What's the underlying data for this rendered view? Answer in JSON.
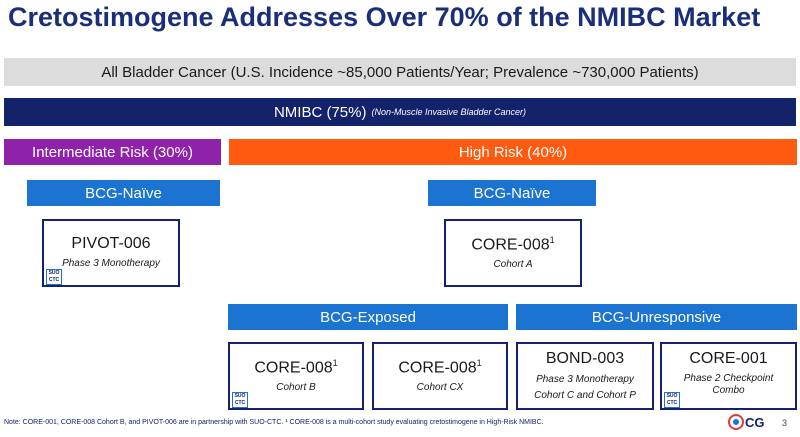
{
  "title": "Cretostimogene Addresses Over 70% of the NMIBC Market",
  "all_bladder": "All Bladder Cancer (U.S. Incidence ~85,000 Patients/Year; Prevalence ~730,000 Patients)",
  "nmibc": {
    "label": "NMIBC (75%)",
    "sub": "(Non-Muscle Invasive Bladder Cancer)"
  },
  "risk": {
    "intermediate": "Intermediate Risk (30%)",
    "high": "High Risk (40%)"
  },
  "categories": {
    "naive_left": "BCG-Naïve",
    "naive_right": "BCG-Naïve",
    "exposed": "BCG-Exposed",
    "unresponsive": "BCG-Unresponsive"
  },
  "studies": {
    "pivot006": {
      "name": "PIVOT-006",
      "detail": "Phase 3 Monotherapy"
    },
    "core008a": {
      "name": "CORE-008",
      "sup": "1",
      "detail": "Cohort A"
    },
    "core008b": {
      "name": "CORE-008",
      "sup": "1",
      "detail": "Cohort B"
    },
    "core008cx": {
      "name": "CORE-008",
      "sup": "1",
      "detail": "Cohort CX"
    },
    "bond003": {
      "name": "BOND-003",
      "detail1": "Phase 3 Monotherapy",
      "detail2": "Cohort C and Cohort P"
    },
    "core001": {
      "name": "CORE-001",
      "detail1": "Phase 2 Checkpoint",
      "detail2": "Combo"
    }
  },
  "suo_badge": {
    "line1": "SUO",
    "line2": "CTC"
  },
  "note": "Note: CORE-001, CORE-008 Cohort B, and PIVOT-006 are in partnership with SUO-CTC. ¹ CORE-008 is a multi-cohort study evaluating cretostimogene in High-Risk NMIBC.",
  "logo_text": "CG",
  "page_number": "3",
  "colors": {
    "navy": "#13226b",
    "blue": "#1b74d1",
    "purple": "#8e22a8",
    "orange": "#ff5a10",
    "gray": "#dcdcdc"
  }
}
